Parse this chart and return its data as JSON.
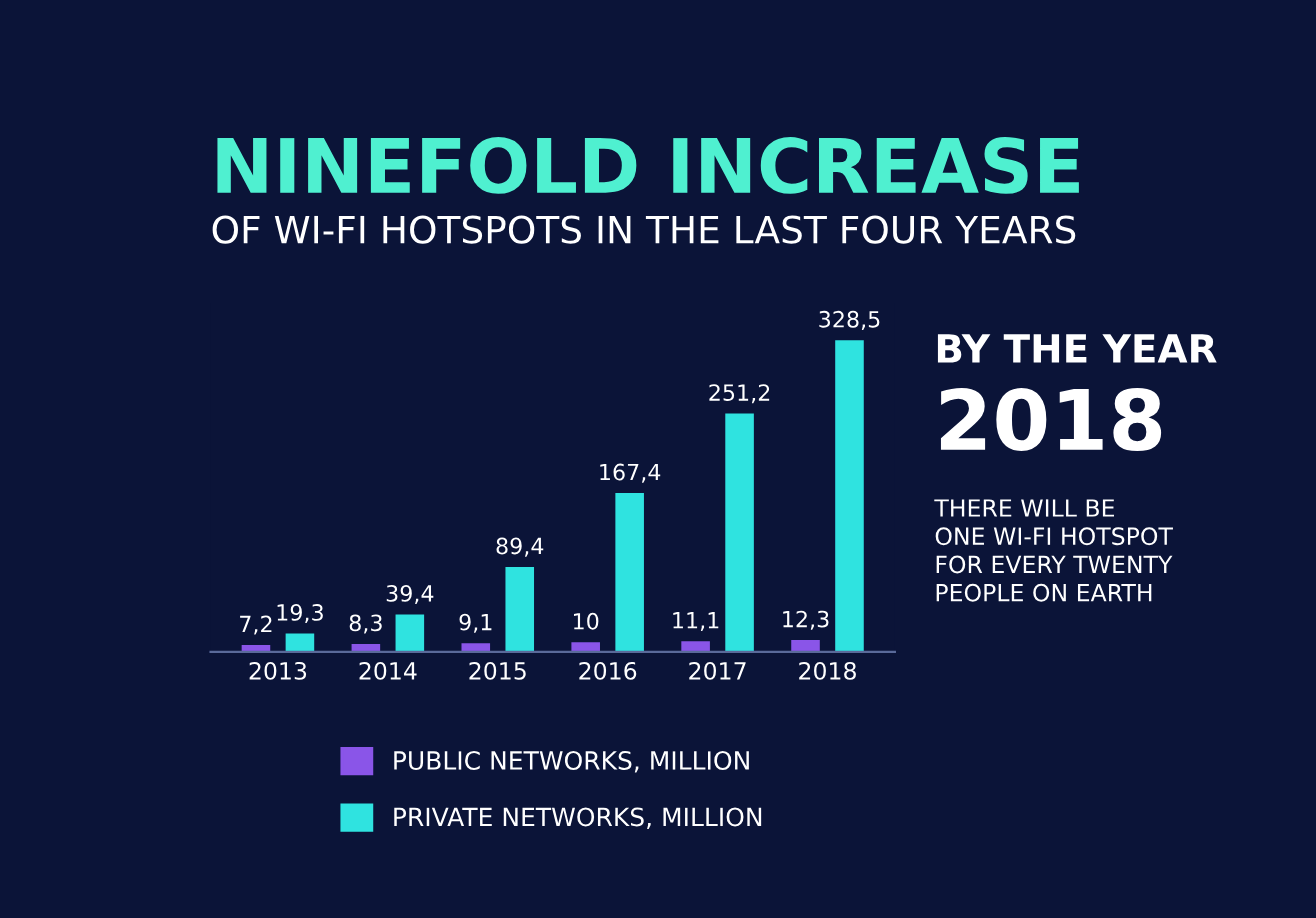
{
  "chart_data": {
    "type": "bar",
    "title": "NINEFOLD INCREASE",
    "subtitle": "OF WI-FI HOTSPOTS IN THE LAST FOUR YEARS",
    "categories": [
      "2013",
      "2014",
      "2015",
      "2016",
      "2017",
      "2018"
    ],
    "series": [
      {
        "name": "PUBLIC NETWORKS, MILLION",
        "color": "#8a55e8",
        "values": [
          7.2,
          8.3,
          9.1,
          10,
          11.1,
          12.3
        ],
        "value_labels": [
          "7,2",
          "8,3",
          "9,1",
          "10",
          "11,1",
          "12,3"
        ]
      },
      {
        "name": "PRIVATE NETWORKS, MILLION",
        "color": "#2fe3e0",
        "values": [
          19.3,
          39.4,
          89.4,
          167.4,
          251.2,
          328.5
        ],
        "value_labels": [
          "19,3",
          "39,4",
          "89,4",
          "167,4",
          "251,2",
          "328,5"
        ]
      }
    ],
    "annotations": [
      "BY THE YEAR",
      "2018",
      "THERE WILL BE\nONE WI-FI HOTSPOT\nFOR EVERY TWENTY\nPEOPLE ON EARTH"
    ],
    "legend": "bottom",
    "grid": false
  }
}
